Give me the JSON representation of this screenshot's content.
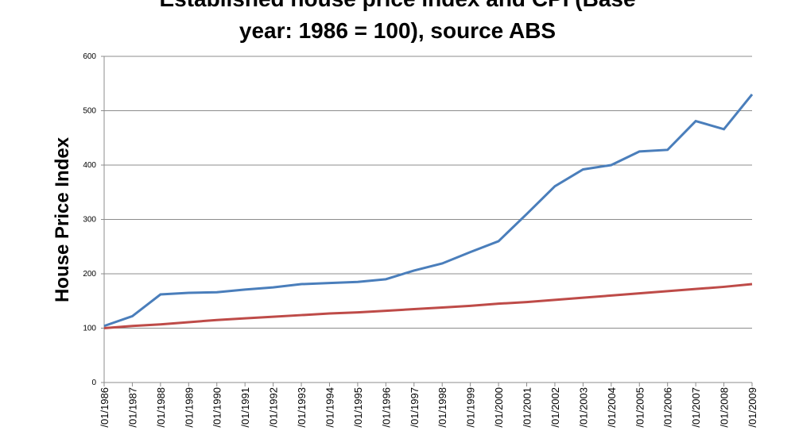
{
  "chart_data": {
    "type": "line",
    "title": [
      "Established house price index and CPI (Base",
      "year: 1986 = 100), source ABS"
    ],
    "y_label": "House Price Index",
    "categories": [
      "/01/1986",
      "/01/1987",
      "/01/1988",
      "/01/1989",
      "/01/1990",
      "/01/1991",
      "/01/1992",
      "/01/1993",
      "/01/1994",
      "/01/1995",
      "/01/1996",
      "/01/1997",
      "/01/1998",
      "/01/1999",
      "/01/2000",
      "/01/2001",
      "/01/2002",
      "/01/2003",
      "/01/2004",
      "/01/2005",
      "/01/2006",
      "/01/2007",
      "/01/2008",
      "/01/2009"
    ],
    "series": [
      {
        "color": "#4a7ebb",
        "values": [
          104,
          122,
          162,
          165,
          166,
          171,
          175,
          181,
          183,
          185,
          190,
          206,
          219,
          240,
          260,
          310,
          361,
          392,
          400,
          425,
          428,
          481,
          466,
          530
        ]
      },
      {
        "color": "#be4b48",
        "values": [
          100,
          104,
          107,
          111,
          115,
          118,
          121,
          124,
          127,
          129,
          132,
          135,
          138,
          141,
          145,
          148,
          152,
          156,
          160,
          164,
          168,
          172,
          176,
          181
        ]
      }
    ],
    "ylim": [
      0,
      600
    ],
    "yticks": [
      0,
      100,
      200,
      300,
      400,
      500,
      600
    ],
    "grid": true
  }
}
